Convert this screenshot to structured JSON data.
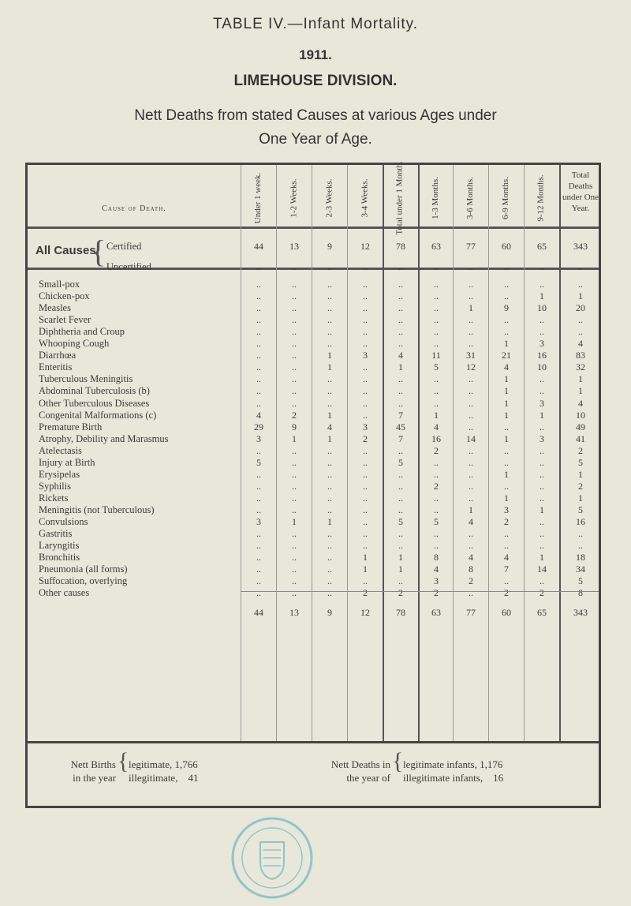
{
  "title": "TABLE IV.—Infant Mortality.",
  "year": "1911.",
  "division": "LIMEHOUSE DIVISION.",
  "subtitle_1": "Nett Deaths from stated Causes at various Ages under",
  "subtitle_2": "One Year of Age.",
  "table": {
    "cause_header": "Cause of Death.",
    "columns": [
      "Under 1 week.",
      "1-2 Weeks.",
      "2-3 Weeks.",
      "3-4 Weeks.",
      "Total under 1 Month.",
      "1-3 Months.",
      "3-6 Months.",
      "6-9 Months.",
      "9-12 Months."
    ],
    "total_col": "Total Deaths under One Year.",
    "all_causes_label": "All Causes.",
    "all_causes": [
      {
        "label": "Certified",
        "values": [
          "44",
          "13",
          "9",
          "12",
          "78",
          "63",
          "77",
          "60",
          "65",
          "343"
        ]
      },
      {
        "label": "Uncertified",
        "values": [
          "..",
          "..",
          "..",
          "..",
          "..",
          "..",
          "..",
          "..",
          "..",
          ".."
        ]
      }
    ],
    "rows": [
      {
        "label": "Small-pox",
        "values": [
          "..",
          "..",
          "..",
          "..",
          "..",
          "..",
          "..",
          "..",
          "..",
          ".."
        ]
      },
      {
        "label": "Chicken-pox",
        "values": [
          "..",
          "..",
          "..",
          "..",
          "..",
          "..",
          "..",
          "..",
          "1",
          "1"
        ]
      },
      {
        "label": "Measles",
        "values": [
          "..",
          "..",
          "..",
          "..",
          "..",
          "..",
          "1",
          "9",
          "10",
          "20"
        ]
      },
      {
        "label": "Scarlet Fever",
        "values": [
          "..",
          "..",
          "..",
          "..",
          "..",
          "..",
          "..",
          "..",
          "..",
          ".."
        ]
      },
      {
        "label": "Diphtheria and Croup",
        "values": [
          "..",
          "..",
          "..",
          "..",
          "..",
          "..",
          "..",
          "..",
          "..",
          ".."
        ]
      },
      {
        "label": "Whooping Cough",
        "values": [
          "..",
          "..",
          "..",
          "..",
          "..",
          "..",
          "..",
          "1",
          "3",
          "4"
        ]
      },
      {
        "label": "Diarrhœa",
        "values": [
          "..",
          "..",
          "1",
          "3",
          "4",
          "11",
          "31",
          "21",
          "16",
          "83"
        ]
      },
      {
        "label": "Enteritis",
        "values": [
          "..",
          "..",
          "1",
          "..",
          "1",
          "5",
          "12",
          "4",
          "10",
          "32"
        ]
      },
      {
        "label": "Tuberculous Meningitis",
        "values": [
          "..",
          "..",
          "..",
          "..",
          "..",
          "..",
          "..",
          "1",
          "..",
          "1"
        ]
      },
      {
        "label": "Abdominal Tuberculosis (b)",
        "values": [
          "..",
          "..",
          "..",
          "..",
          "..",
          "..",
          "..",
          "1",
          "..",
          "1"
        ]
      },
      {
        "label": "Other Tuberculous Diseases",
        "values": [
          "..",
          "..",
          "..",
          "..",
          "..",
          "..",
          "..",
          "1",
          "3",
          "4"
        ]
      },
      {
        "label": "Congenital Malformations (c)",
        "values": [
          "4",
          "2",
          "1",
          "..",
          "7",
          "1",
          "..",
          "1",
          "1",
          "10"
        ]
      },
      {
        "label": "Premature Birth",
        "values": [
          "29",
          "9",
          "4",
          "3",
          "45",
          "4",
          "..",
          "..",
          "..",
          "49"
        ]
      },
      {
        "label": "Atrophy, Debility and Marasmus",
        "values": [
          "3",
          "1",
          "1",
          "2",
          "7",
          "16",
          "14",
          "1",
          "3",
          "41"
        ]
      },
      {
        "label": "Atelectasis",
        "values": [
          "..",
          "..",
          "..",
          "..",
          "..",
          "2",
          "..",
          "..",
          "..",
          "2"
        ]
      },
      {
        "label": "Injury at Birth",
        "values": [
          "5",
          "..",
          "..",
          "..",
          "5",
          "..",
          "..",
          "..",
          "..",
          "5"
        ]
      },
      {
        "label": "Erysipelas",
        "values": [
          "..",
          "..",
          "..",
          "..",
          "..",
          "..",
          "..",
          "1",
          "..",
          "1"
        ]
      },
      {
        "label": "Syphilis",
        "values": [
          "..",
          "..",
          "..",
          "..",
          "..",
          "2",
          "..",
          "..",
          "..",
          "2"
        ]
      },
      {
        "label": "Rickets",
        "values": [
          "..",
          "..",
          "..",
          "..",
          "..",
          "..",
          "..",
          "1",
          "..",
          "1"
        ]
      },
      {
        "label": "Meningitis (not Tuberculous)",
        "values": [
          "..",
          "..",
          "..",
          "..",
          "..",
          "..",
          "1",
          "3",
          "1",
          "5"
        ]
      },
      {
        "label": "Convulsions",
        "values": [
          "3",
          "1",
          "1",
          "..",
          "5",
          "5",
          "4",
          "2",
          "..",
          "16"
        ]
      },
      {
        "label": "Gastritis",
        "values": [
          "..",
          "..",
          "..",
          "..",
          "..",
          "..",
          "..",
          "..",
          "..",
          ".."
        ]
      },
      {
        "label": "Laryngitis",
        "values": [
          "..",
          "..",
          "..",
          "..",
          "..",
          "..",
          "..",
          "..",
          "..",
          ".."
        ]
      },
      {
        "label": "Bronchitis",
        "values": [
          "..",
          "..",
          "..",
          "1",
          "1",
          "8",
          "4",
          "4",
          "1",
          "18"
        ]
      },
      {
        "label": "Pneumonia (all forms)",
        "values": [
          "..",
          "..",
          "..",
          "1",
          "1",
          "4",
          "8",
          "7",
          "14",
          "34"
        ]
      },
      {
        "label": "Suffocation, overlying",
        "values": [
          "..",
          "..",
          "..",
          "..",
          "..",
          "3",
          "2",
          "..",
          "..",
          "5"
        ]
      },
      {
        "label": "Other causes",
        "values": [
          "..",
          "..",
          "..",
          "2",
          "2",
          "2",
          "..",
          "2",
          "2",
          "8"
        ]
      }
    ],
    "totals": [
      "44",
      "13",
      "9",
      "12",
      "78",
      "63",
      "77",
      "60",
      "65",
      "343"
    ]
  },
  "footer": {
    "births_label_1": "Nett Births",
    "births_label_2": "in the year",
    "births_legit": "legitimate, 1,766",
    "births_illegit": "illegitimate,    41",
    "deaths_label_1": "Nett Deaths in",
    "deaths_label_2": "the year of",
    "deaths_legit": "legitimate infants, 1,176",
    "deaths_illegit": "illegitimate infants,    16"
  },
  "colors": {
    "paper": "#e9e6da",
    "ink": "#3a3a3a",
    "seal": "#7fc0c8"
  }
}
